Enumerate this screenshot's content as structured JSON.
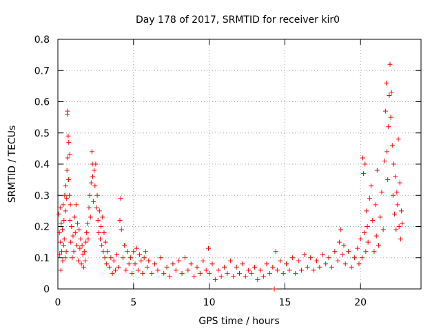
{
  "chart_data": {
    "type": "scatter",
    "title": "Day 178 of 2017, SRMTID for receiver kir0",
    "xlabel": "GPS time / hours",
    "ylabel": "SRMTID / TECUs",
    "xlim": [
      0,
      24
    ],
    "ylim": [
      0,
      0.8
    ],
    "x_ticks": [
      0,
      5,
      10,
      15,
      20
    ],
    "x_tick_labels": [
      "0",
      "5",
      "10",
      "15",
      "20"
    ],
    "y_ticks": [
      0,
      0.1,
      0.2,
      0.3,
      0.4,
      0.5,
      0.6,
      0.7,
      0.8
    ],
    "y_tick_labels": [
      "0",
      "0.1",
      "0.2",
      "0.3",
      "0.4",
      "0.5",
      "0.6",
      "0.7",
      "0.8"
    ],
    "grid": true,
    "marker": "+",
    "marker_color": "#ff0000",
    "series": [
      {
        "name": "SRMTID",
        "points": [
          [
            0.05,
            0.24
          ],
          [
            0.1,
            0.18
          ],
          [
            0.12,
            0.11
          ],
          [
            0.15,
            0.26
          ],
          [
            0.18,
            0.15
          ],
          [
            0.2,
            0.06
          ],
          [
            0.22,
            0.21
          ],
          [
            0.25,
            0.12
          ],
          [
            0.3,
            0.19
          ],
          [
            0.32,
            0.09
          ],
          [
            0.35,
            0.27
          ],
          [
            0.38,
            0.14
          ],
          [
            0.4,
            0.22
          ],
          [
            0.42,
            0.16
          ],
          [
            0.45,
            0.3
          ],
          [
            0.48,
            0.1
          ],
          [
            0.5,
            0.25
          ],
          [
            0.52,
            0.33
          ],
          [
            0.55,
            0.12
          ],
          [
            0.58,
            0.29
          ],
          [
            0.6,
            0.38
          ],
          [
            0.62,
            0.56
          ],
          [
            0.63,
            0.57
          ],
          [
            0.65,
            0.42
          ],
          [
            0.68,
            0.49
          ],
          [
            0.7,
            0.35
          ],
          [
            0.72,
            0.47
          ],
          [
            0.75,
            0.3
          ],
          [
            0.78,
            0.43
          ],
          [
            0.8,
            0.22
          ],
          [
            0.82,
            0.27
          ],
          [
            0.85,
            0.15
          ],
          [
            0.9,
            0.2
          ],
          [
            0.95,
            0.1
          ],
          [
            1.0,
            0.17
          ],
          [
            1.05,
            0.12
          ],
          [
            1.1,
            0.23
          ],
          [
            1.15,
            0.18
          ],
          [
            1.2,
            0.27
          ],
          [
            1.25,
            0.14
          ],
          [
            1.3,
            0.21
          ],
          [
            1.35,
            0.09
          ],
          [
            1.4,
            0.19
          ],
          [
            1.45,
            0.13
          ],
          [
            1.5,
            0.16
          ],
          [
            1.55,
            0.08
          ],
          [
            1.6,
            0.14
          ],
          [
            1.65,
            0.11
          ],
          [
            1.7,
            0.07
          ],
          [
            1.75,
            0.12
          ],
          [
            1.8,
            0.09
          ],
          [
            1.85,
            0.15
          ],
          [
            1.9,
            0.18
          ],
          [
            1.95,
            0.21
          ],
          [
            2.0,
            0.16
          ],
          [
            2.05,
            0.26
          ],
          [
            2.1,
            0.3
          ],
          [
            2.15,
            0.23
          ],
          [
            2.2,
            0.34
          ],
          [
            2.25,
            0.44
          ],
          [
            2.28,
            0.4
          ],
          [
            2.3,
            0.36
          ],
          [
            2.35,
            0.28
          ],
          [
            2.4,
            0.38
          ],
          [
            2.45,
            0.33
          ],
          [
            2.5,
            0.4
          ],
          [
            2.55,
            0.26
          ],
          [
            2.6,
            0.3
          ],
          [
            2.65,
            0.22
          ],
          [
            2.7,
            0.18
          ],
          [
            2.75,
            0.25
          ],
          [
            2.8,
            0.16
          ],
          [
            2.85,
            0.2
          ],
          [
            2.9,
            0.14
          ],
          [
            2.95,
            0.23
          ],
          [
            3.0,
            0.12
          ],
          [
            3.05,
            0.18
          ],
          [
            3.1,
            0.1
          ],
          [
            3.15,
            0.15
          ],
          [
            3.2,
            0.08
          ],
          [
            3.3,
            0.12
          ],
          [
            3.4,
            0.07
          ],
          [
            3.5,
            0.1
          ],
          [
            3.6,
            0.05
          ],
          [
            3.7,
            0.09
          ],
          [
            3.8,
            0.06
          ],
          [
            3.9,
            0.11
          ],
          [
            4.0,
            0.07
          ],
          [
            4.1,
            0.22
          ],
          [
            4.15,
            0.29
          ],
          [
            4.2,
            0.19
          ],
          [
            4.3,
            0.1
          ],
          [
            4.4,
            0.14
          ],
          [
            4.5,
            0.06
          ],
          [
            4.6,
            0.12
          ],
          [
            4.7,
            0.08
          ],
          [
            4.8,
            0.1
          ],
          [
            4.9,
            0.05
          ],
          [
            5.0,
            0.12
          ],
          [
            5.1,
            0.08
          ],
          [
            5.2,
            0.13
          ],
          [
            5.3,
            0.06
          ],
          [
            5.4,
            0.11
          ],
          [
            5.5,
            0.09
          ],
          [
            5.6,
            0.05
          ],
          [
            5.7,
            0.1
          ],
          [
            5.8,
            0.12
          ],
          [
            5.9,
            0.07
          ],
          [
            6.0,
            0.09
          ],
          [
            6.2,
            0.05
          ],
          [
            6.4,
            0.08
          ],
          [
            6.6,
            0.06
          ],
          [
            6.8,
            0.1
          ],
          [
            7.0,
            0.05
          ],
          [
            7.2,
            0.07
          ],
          [
            7.4,
            0.04
          ],
          [
            7.6,
            0.08
          ],
          [
            7.8,
            0.06
          ],
          [
            8.0,
            0.09
          ],
          [
            8.2,
            0.05
          ],
          [
            8.4,
            0.1
          ],
          [
            8.6,
            0.06
          ],
          [
            8.8,
            0.08
          ],
          [
            9.0,
            0.04
          ],
          [
            9.2,
            0.07
          ],
          [
            9.4,
            0.05
          ],
          [
            9.6,
            0.09
          ],
          [
            9.8,
            0.06
          ],
          [
            9.95,
            0.13
          ],
          [
            10.0,
            0.05
          ],
          [
            10.2,
            0.08
          ],
          [
            10.4,
            0.03
          ],
          [
            10.6,
            0.06
          ],
          [
            10.8,
            0.04
          ],
          [
            11.0,
            0.07
          ],
          [
            11.2,
            0.05
          ],
          [
            11.4,
            0.09
          ],
          [
            11.6,
            0.04
          ],
          [
            11.8,
            0.07
          ],
          [
            12.0,
            0.05
          ],
          [
            12.2,
            0.08
          ],
          [
            12.4,
            0.04
          ],
          [
            12.6,
            0.06
          ],
          [
            12.8,
            0.05
          ],
          [
            13.0,
            0.07
          ],
          [
            13.2,
            0.03
          ],
          [
            13.4,
            0.06
          ],
          [
            13.6,
            0.04
          ],
          [
            13.8,
            0.08
          ],
          [
            14.0,
            0.05
          ],
          [
            14.2,
            0.07
          ],
          [
            14.3,
            0.0
          ],
          [
            14.4,
            0.12
          ],
          [
            14.5,
            0.06
          ],
          [
            14.7,
            0.09
          ],
          [
            14.9,
            0.05
          ],
          [
            15.1,
            0.08
          ],
          [
            15.3,
            0.06
          ],
          [
            15.5,
            0.1
          ],
          [
            15.7,
            0.05
          ],
          [
            15.9,
            0.09
          ],
          [
            16.1,
            0.06
          ],
          [
            16.3,
            0.11
          ],
          [
            16.5,
            0.07
          ],
          [
            16.7,
            0.1
          ],
          [
            16.9,
            0.06
          ],
          [
            17.1,
            0.09
          ],
          [
            17.3,
            0.07
          ],
          [
            17.5,
            0.11
          ],
          [
            17.7,
            0.08
          ],
          [
            17.9,
            0.1
          ],
          [
            18.1,
            0.07
          ],
          [
            18.3,
            0.12
          ],
          [
            18.5,
            0.09
          ],
          [
            18.6,
            0.15
          ],
          [
            18.7,
            0.19
          ],
          [
            18.8,
            0.11
          ],
          [
            18.9,
            0.14
          ],
          [
            19.0,
            0.08
          ],
          [
            19.2,
            0.12
          ],
          [
            19.4,
            0.07
          ],
          [
            19.6,
            0.1
          ],
          [
            19.8,
            0.13
          ],
          [
            19.9,
            0.08
          ],
          [
            20.0,
            0.16
          ],
          [
            20.1,
            0.1
          ],
          [
            20.15,
            0.42
          ],
          [
            20.2,
            0.37
          ],
          [
            20.25,
            0.18
          ],
          [
            20.3,
            0.4
          ],
          [
            20.35,
            0.12
          ],
          [
            20.4,
            0.25
          ],
          [
            20.45,
            0.2
          ],
          [
            20.5,
            0.15
          ],
          [
            20.6,
            0.29
          ],
          [
            20.7,
            0.33
          ],
          [
            20.8,
            0.22
          ],
          [
            20.9,
            0.12
          ],
          [
            21.0,
            0.27
          ],
          [
            21.05,
            0.17
          ],
          [
            21.1,
            0.38
          ],
          [
            21.2,
            0.14
          ],
          [
            21.3,
            0.23
          ],
          [
            21.4,
            0.31
          ],
          [
            21.5,
            0.19
          ],
          [
            21.6,
            0.41
          ],
          [
            21.65,
            0.57
          ],
          [
            21.7,
            0.66
          ],
          [
            21.75,
            0.44
          ],
          [
            21.8,
            0.35
          ],
          [
            21.85,
            0.52
          ],
          [
            21.9,
            0.62
          ],
          [
            21.95,
            0.72
          ],
          [
            22.0,
            0.55
          ],
          [
            22.05,
            0.63
          ],
          [
            22.1,
            0.46
          ],
          [
            22.15,
            0.3
          ],
          [
            22.2,
            0.4
          ],
          [
            22.25,
            0.24
          ],
          [
            22.3,
            0.36
          ],
          [
            22.35,
            0.19
          ],
          [
            22.4,
            0.31
          ],
          [
            22.45,
            0.27
          ],
          [
            22.5,
            0.48
          ],
          [
            22.55,
            0.2
          ],
          [
            22.6,
            0.34
          ],
          [
            22.65,
            0.16
          ],
          [
            22.7,
            0.25
          ],
          [
            22.75,
            0.21
          ]
        ]
      }
    ]
  }
}
